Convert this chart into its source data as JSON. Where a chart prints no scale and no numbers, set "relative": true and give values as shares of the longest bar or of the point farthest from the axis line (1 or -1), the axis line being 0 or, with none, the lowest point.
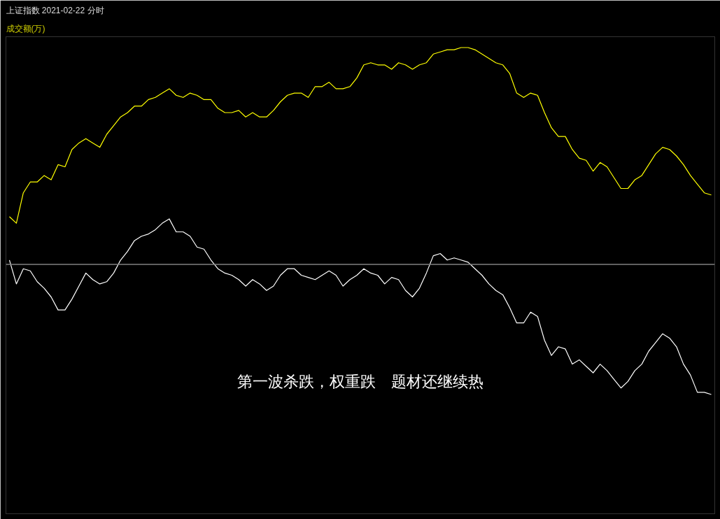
{
  "chart_data": {
    "type": "line",
    "relative": true,
    "title": "上证指数 2021-02-22 分时",
    "subtitle": "成交额(万)",
    "categories": [
      null,
      null,
      null,
      null,
      null,
      null,
      null,
      null,
      null,
      null,
      null,
      null,
      null,
      null,
      null,
      null,
      null,
      null,
      null,
      null,
      null,
      null,
      null,
      null,
      null,
      null,
      null,
      null,
      null,
      null,
      null,
      null,
      null,
      null,
      null,
      null,
      null,
      null,
      null,
      null,
      null,
      null,
      null,
      null,
      null,
      null,
      null,
      null,
      null,
      null,
      null,
      null,
      null,
      null,
      null,
      null,
      null,
      null,
      null,
      null,
      null,
      null,
      null,
      null,
      null,
      null,
      null,
      null,
      null,
      null,
      null,
      null,
      null,
      null,
      null,
      null,
      null,
      null,
      null,
      null,
      null,
      null,
      null,
      null,
      null,
      null,
      null,
      null,
      null,
      null,
      null,
      null,
      null,
      null,
      null,
      null,
      null,
      null,
      null,
      null,
      null,
      null
    ],
    "series": [
      {
        "color": "#ffff00",
        "values": [
          0.22,
          0.19,
          0.33,
          0.38,
          0.38,
          0.41,
          0.39,
          0.46,
          0.45,
          0.53,
          0.56,
          0.58,
          0.56,
          0.54,
          0.6,
          0.64,
          0.68,
          0.7,
          0.73,
          0.73,
          0.76,
          0.77,
          0.79,
          0.81,
          0.78,
          0.77,
          0.79,
          0.78,
          0.76,
          0.76,
          0.72,
          0.7,
          0.7,
          0.71,
          0.68,
          0.7,
          0.68,
          0.68,
          0.71,
          0.75,
          0.78,
          0.79,
          0.79,
          0.77,
          0.82,
          0.82,
          0.84,
          0.81,
          0.81,
          0.82,
          0.86,
          0.92,
          0.93,
          0.92,
          0.92,
          0.9,
          0.93,
          0.92,
          0.9,
          0.92,
          0.93,
          0.97,
          0.98,
          0.99,
          0.99,
          1.0,
          1.0,
          0.99,
          0.97,
          0.95,
          0.93,
          0.92,
          0.88,
          0.79,
          0.77,
          0.79,
          0.78,
          0.7,
          0.63,
          0.59,
          0.59,
          0.53,
          0.49,
          0.48,
          0.43,
          0.47,
          0.45,
          0.4,
          0.35,
          0.35,
          0.39,
          0.41,
          0.46,
          0.51,
          0.54,
          0.53,
          0.5,
          0.46,
          0.41,
          0.37,
          0.33,
          0.32
        ]
      },
      {
        "color": "#ffffff",
        "values": [
          0.02,
          -0.09,
          -0.02,
          -0.03,
          -0.08,
          -0.11,
          -0.15,
          -0.21,
          -0.21,
          -0.16,
          -0.1,
          -0.04,
          -0.07,
          -0.09,
          -0.08,
          -0.04,
          0.02,
          0.06,
          0.11,
          0.13,
          0.14,
          0.16,
          0.19,
          0.21,
          0.15,
          0.15,
          0.13,
          0.08,
          0.07,
          0.02,
          -0.02,
          -0.04,
          -0.05,
          -0.07,
          -0.1,
          -0.07,
          -0.09,
          -0.12,
          -0.1,
          -0.05,
          -0.02,
          -0.02,
          -0.05,
          -0.06,
          -0.07,
          -0.05,
          -0.03,
          -0.05,
          -0.1,
          -0.07,
          -0.05,
          -0.02,
          -0.04,
          -0.05,
          -0.09,
          -0.06,
          -0.07,
          -0.12,
          -0.15,
          -0.11,
          -0.04,
          0.04,
          0.05,
          0.02,
          0.03,
          0.02,
          0.01,
          -0.02,
          -0.05,
          -0.09,
          -0.12,
          -0.14,
          -0.2,
          -0.27,
          -0.27,
          -0.22,
          -0.24,
          -0.35,
          -0.42,
          -0.38,
          -0.39,
          -0.46,
          -0.44,
          -0.47,
          -0.5,
          -0.46,
          -0.49,
          -0.53,
          -0.57,
          -0.54,
          -0.49,
          -0.46,
          -0.4,
          -0.36,
          -0.32,
          -0.34,
          -0.38,
          -0.46,
          -0.51,
          -0.59,
          -0.59,
          -0.6
        ]
      }
    ],
    "ref_lines": [
      {
        "axis": "y",
        "value": 0,
        "color": "#808080"
      }
    ],
    "annotations": [
      "第一波杀跌，权重跌　题材还继续热"
    ]
  }
}
